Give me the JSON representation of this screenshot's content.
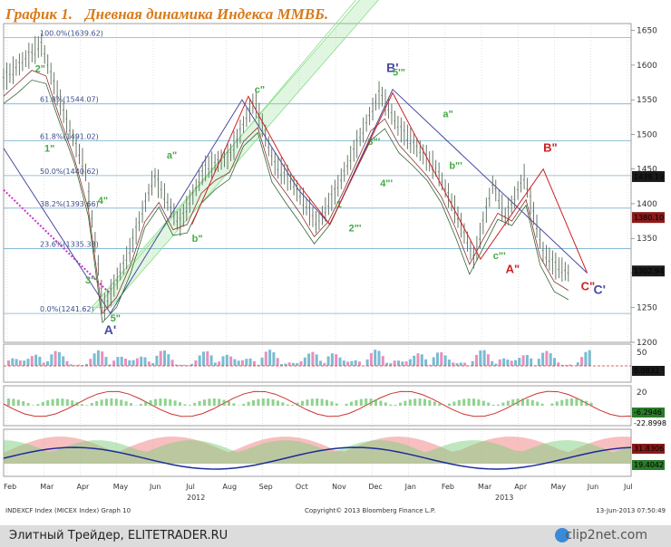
{
  "header": {
    "title_prefix": "График 1.",
    "title_main": "Дневная динамика Индекса ММВБ."
  },
  "footer": {
    "left": "Элитный Трейдер, ELITETRADER.RU",
    "logo": "clip2net.com"
  },
  "info": {
    "left": "INDEXCF Index (MICEX Index) Graph 10",
    "center": "Copyright© 2013 Bloomberg Finance L.P.",
    "right": "13-Jun-2013 07:50:49"
  },
  "colors": {
    "price_bar": "#5a6a5a",
    "up": "#33aa33",
    "down": "#cc2222",
    "fib": "#7ab0d0",
    "channel": "#88dd88",
    "wave_blue": "#4a4aa0",
    "wave_red": "#cc2222",
    "orange_title": "#d97a1a"
  },
  "chart_data": [
    {
      "type": "line",
      "panel": "price",
      "ylim": [
        1200,
        1660
      ],
      "y_ticks": [
        1200,
        1250,
        1300,
        1350,
        1400,
        1450,
        1500,
        1550,
        1600,
        1650
      ],
      "x_months": [
        "Feb",
        "Mar",
        "Apr",
        "May",
        "Jun",
        "Jul",
        "Aug",
        "Sep",
        "Oct",
        "Nov",
        "Dec",
        "Jan",
        "Feb",
        "Mar",
        "Apr",
        "May",
        "Jun",
        "Jul"
      ],
      "year_labels": [
        "2012",
        "2013"
      ],
      "fib_levels": [
        {
          "label": "100.0%(1639.62)",
          "value": 1639.62
        },
        {
          "label": "61.8%(1544.07)",
          "value": 1544.07
        },
        {
          "label": "61.8%(1491.02)",
          "value": 1491.02
        },
        {
          "label": "50.0%(1440.62)",
          "value": 1440.62
        },
        {
          "label": "38.2%(1393.66)",
          "value": 1393.66
        },
        {
          "label": "23.6%(1335.33)",
          "value": 1335.33
        },
        {
          "label": "0.0%(1241.62)",
          "value": 1241.62
        }
      ],
      "value_tags": [
        {
          "label": "1439.19",
          "value": 1439.19,
          "bg": "#1a1a1a"
        },
        {
          "label": "1380.10",
          "value": 1380.1,
          "bg": "#8a1a1a"
        },
        {
          "label": "1302.94",
          "value": 1302.94,
          "bg": "#1a1a1a"
        }
      ],
      "series": [
        {
          "x": [
            0,
            0.06,
            0.1,
            0.13,
            0.16,
            0.2,
            0.24,
            0.28,
            0.32,
            0.36,
            0.4,
            0.43,
            0.46,
            0.5,
            0.53,
            0.56,
            0.6,
            0.63,
            0.66,
            0.69,
            0.72,
            0.75,
            0.78,
            0.8,
            0.83,
            0.86,
            0.88,
            0.9
          ],
          "y": [
            1580,
            1630,
            1520,
            1450,
            1250,
            1330,
            1440,
            1370,
            1450,
            1470,
            1550,
            1460,
            1430,
            1370,
            1420,
            1480,
            1560,
            1510,
            1480,
            1450,
            1390,
            1320,
            1430,
            1380,
            1440,
            1330,
            1310,
            1300
          ]
        }
      ]
    },
    {
      "type": "bar",
      "panel": "indicator_1",
      "ylabel_ticks": [
        "50",
        "0"
      ],
      "value_tag": "0.0832"
    },
    {
      "type": "area",
      "panel": "indicator_2",
      "ylabel_ticks": [
        "20",
        "0"
      ],
      "value_tags": [
        "-6.2946",
        "-22.8998"
      ]
    },
    {
      "type": "area",
      "panel": "indicator_3",
      "value_tags": [
        "31.8306",
        "19.4042"
      ]
    }
  ],
  "waves": {
    "blue": [
      {
        "t": "B'",
        "c": "#4a4aa0"
      },
      {
        "t": "A'",
        "c": "#4a4aa0"
      },
      {
        "t": "C'",
        "c": "#4a4aa0"
      }
    ],
    "red": [
      {
        "t": "B\"",
        "c": "#cc2222"
      },
      {
        "t": "A\"",
        "c": "#cc2222"
      },
      {
        "t": "C\"",
        "c": "#cc2222"
      }
    ],
    "green": [
      "2\"",
      "1\"",
      "3\"",
      "4\"",
      "5\"",
      "a\"",
      "b\"",
      "c\"",
      "5'\"",
      "1",
      "2\"'",
      "3\"'",
      "4\"'",
      "a\"",
      "b\"'",
      "c\"'"
    ]
  }
}
